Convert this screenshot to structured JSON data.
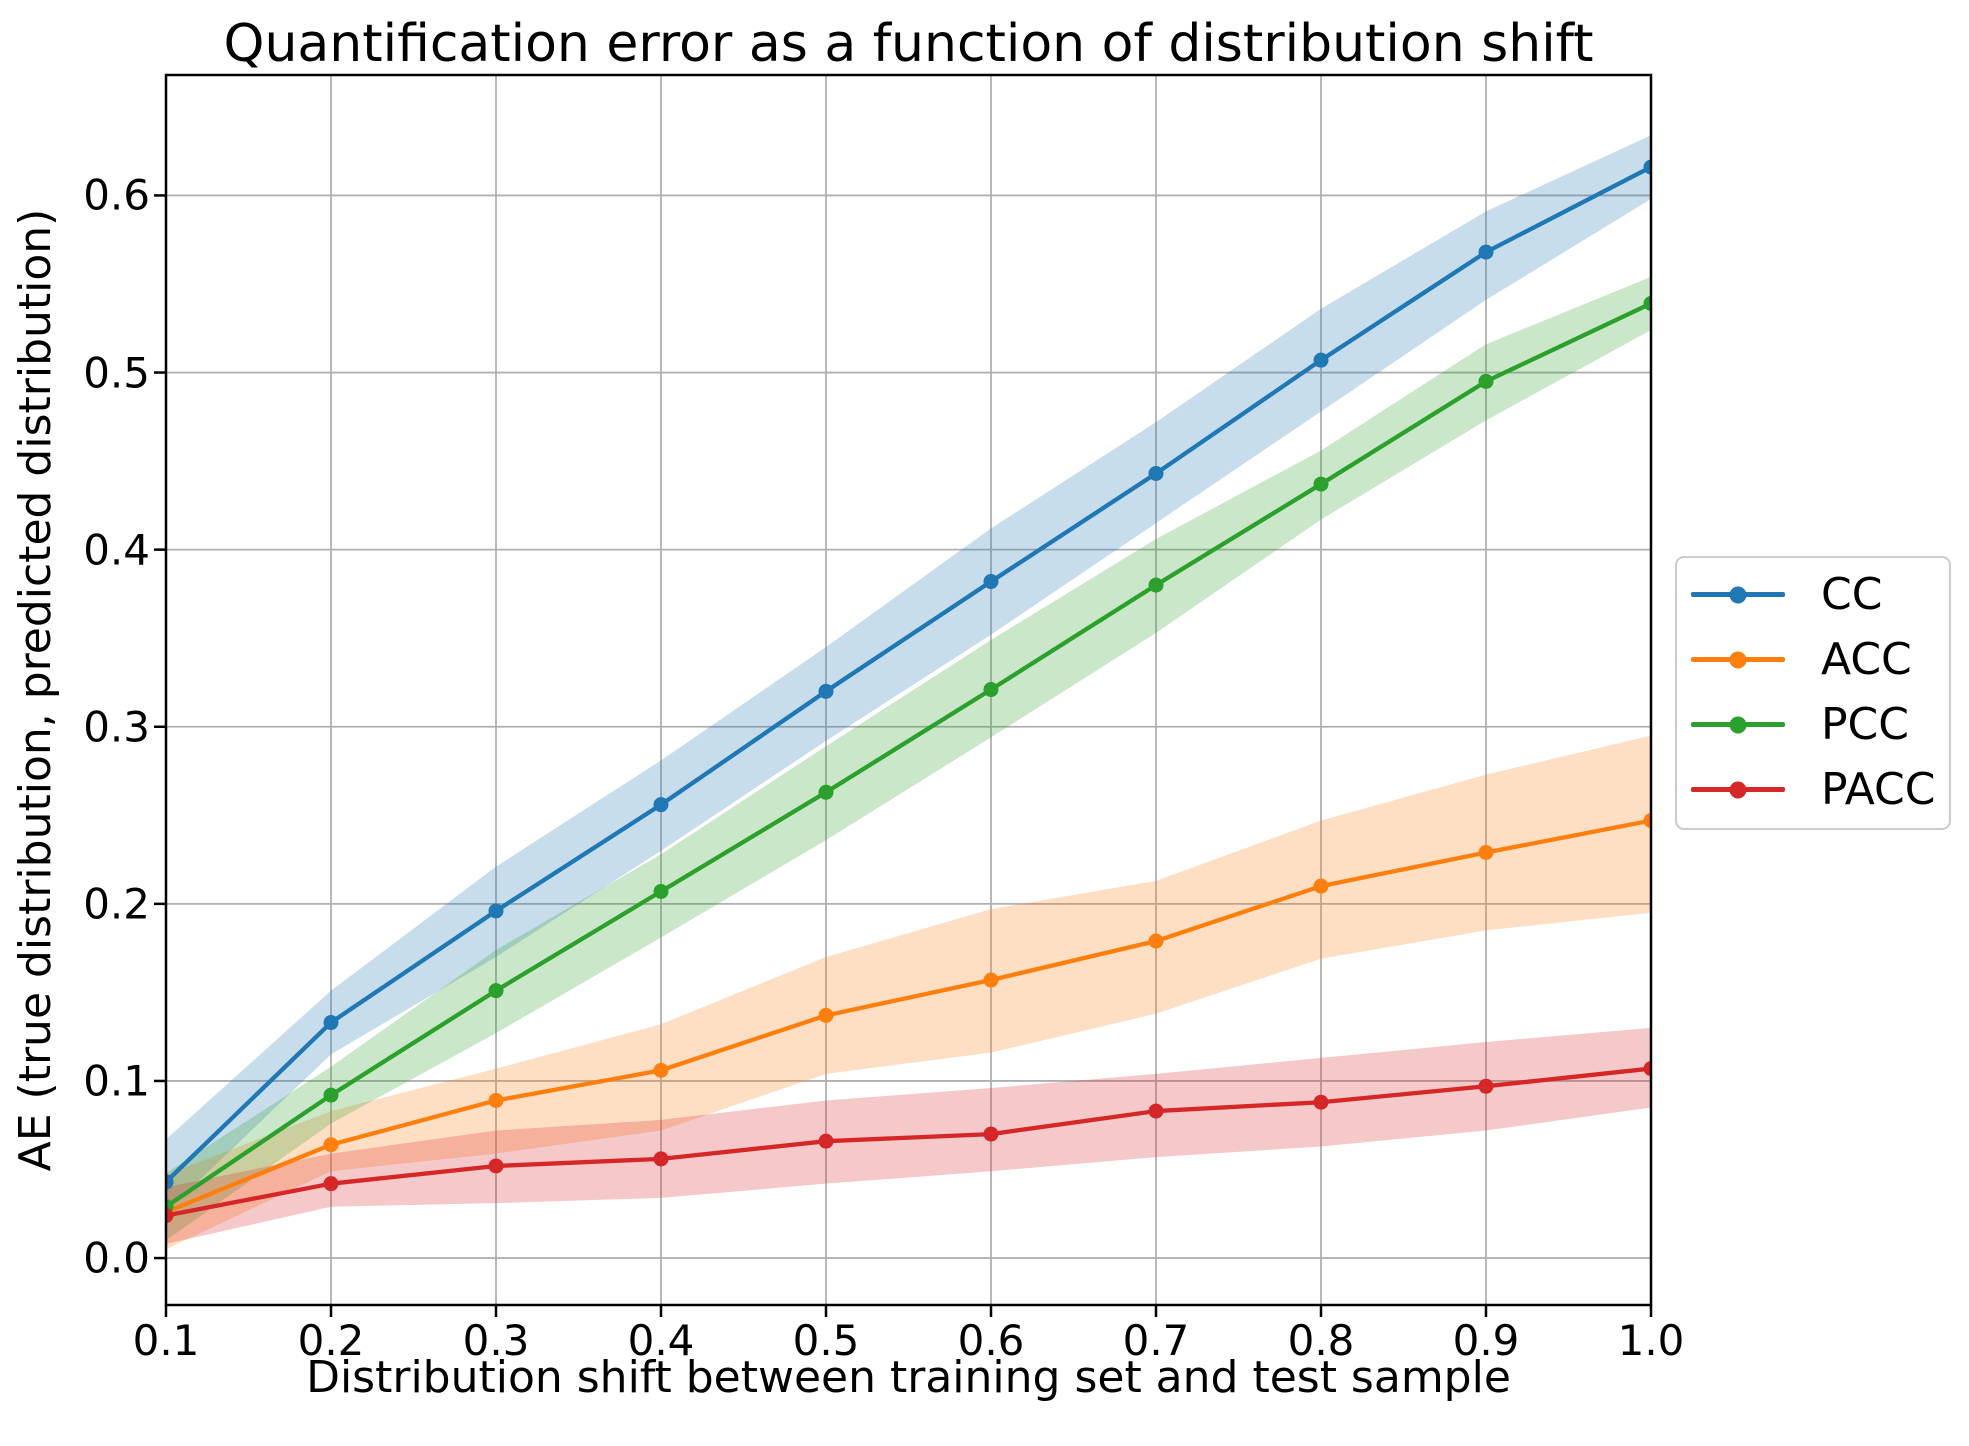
{
  "chart_data": {
    "type": "line",
    "title": "Quantification error as a function of distribution shift",
    "xlabel": "Distribution shift between training set and test sample",
    "ylabel": "AE (true distribution, predicted distribution)",
    "x": [
      0.1,
      0.2,
      0.3,
      0.4,
      0.5,
      0.6,
      0.7,
      0.8,
      0.9,
      1.0
    ],
    "xlim": [
      0.1,
      1.0
    ],
    "ylim": [
      -0.0265,
      0.668
    ],
    "xtick_labels": [
      "0.1",
      "0.2",
      "0.3",
      "0.4",
      "0.5",
      "0.6",
      "0.7",
      "0.8",
      "0.9",
      "1.0"
    ],
    "ytick_labels": [
      "0.0",
      "0.1",
      "0.2",
      "0.3",
      "0.4",
      "0.5",
      "0.6"
    ],
    "grid": true,
    "grid_color": "#b0b0b0",
    "band_opacity": 0.25,
    "legend_position": "outside-right",
    "series": [
      {
        "name": "CC",
        "color": "#1f77b4",
        "values": [
          0.043,
          0.133,
          0.196,
          0.256,
          0.32,
          0.382,
          0.443,
          0.507,
          0.568,
          0.616
        ],
        "lower": [
          0.026,
          0.115,
          0.17,
          0.23,
          0.292,
          0.352,
          0.415,
          0.478,
          0.541,
          0.598
        ],
        "upper": [
          0.067,
          0.151,
          0.221,
          0.281,
          0.345,
          0.412,
          0.472,
          0.536,
          0.591,
          0.634
        ]
      },
      {
        "name": "ACC",
        "color": "#ff7f0e",
        "values": [
          0.026,
          0.064,
          0.089,
          0.106,
          0.137,
          0.157,
          0.179,
          0.21,
          0.229,
          0.247
        ],
        "lower": [
          0.005,
          0.049,
          0.059,
          0.072,
          0.104,
          0.116,
          0.138,
          0.169,
          0.185,
          0.195
        ],
        "upper": [
          0.047,
          0.083,
          0.107,
          0.132,
          0.17,
          0.197,
          0.213,
          0.247,
          0.273,
          0.295
        ]
      },
      {
        "name": "PCC",
        "color": "#2ca02c",
        "values": [
          0.029,
          0.092,
          0.151,
          0.207,
          0.263,
          0.321,
          0.38,
          0.437,
          0.495,
          0.539
        ],
        "lower": [
          0.01,
          0.076,
          0.127,
          0.181,
          0.236,
          0.294,
          0.353,
          0.417,
          0.473,
          0.524
        ],
        "upper": [
          0.048,
          0.108,
          0.174,
          0.228,
          0.289,
          0.349,
          0.406,
          0.456,
          0.516,
          0.554
        ]
      },
      {
        "name": "PACC",
        "color": "#d62728",
        "values": [
          0.024,
          0.042,
          0.052,
          0.056,
          0.066,
          0.07,
          0.083,
          0.088,
          0.097,
          0.107
        ],
        "lower": [
          0.008,
          0.029,
          0.031,
          0.034,
          0.042,
          0.049,
          0.057,
          0.063,
          0.072,
          0.085
        ],
        "upper": [
          0.04,
          0.059,
          0.072,
          0.078,
          0.089,
          0.096,
          0.104,
          0.113,
          0.122,
          0.13
        ]
      }
    ]
  }
}
